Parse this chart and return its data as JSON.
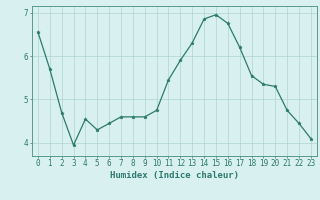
{
  "x": [
    0,
    1,
    2,
    3,
    4,
    5,
    6,
    7,
    8,
    9,
    10,
    11,
    12,
    13,
    14,
    15,
    16,
    17,
    18,
    19,
    20,
    21,
    22,
    23
  ],
  "y": [
    6.55,
    5.7,
    4.7,
    3.95,
    4.55,
    4.3,
    4.45,
    4.6,
    4.6,
    4.6,
    4.75,
    5.45,
    5.9,
    6.3,
    6.85,
    6.95,
    6.75,
    6.2,
    5.55,
    5.35,
    5.3,
    4.75,
    4.45,
    4.1
  ],
  "line_color": "#2d7a6e",
  "marker": "*",
  "marker_size": 2.5,
  "bg_color": "#d9f0f0",
  "grid_color": "#afd4d0",
  "xlabel": "Humidex (Indice chaleur)",
  "xlim": [
    -0.5,
    23.5
  ],
  "ylim": [
    3.7,
    7.15
  ],
  "yticks": [
    4,
    5,
    6,
    7
  ],
  "xticks": [
    0,
    1,
    2,
    3,
    4,
    5,
    6,
    7,
    8,
    9,
    10,
    11,
    12,
    13,
    14,
    15,
    16,
    17,
    18,
    19,
    20,
    21,
    22,
    23
  ],
  "tick_color": "#2d7a6e",
  "label_color": "#2d7a6e",
  "axis_color": "#5a9a8a",
  "label_fontsize": 6.5,
  "tick_fontsize": 5.5
}
